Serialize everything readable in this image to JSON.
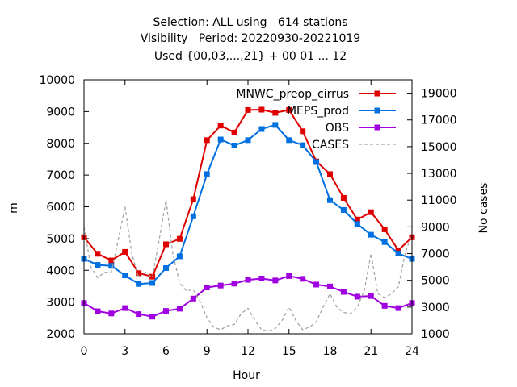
{
  "title_lines": [
    "Selection: ALL using   614 stations",
    "Visibility   Period: 20220930-20221019",
    "Used {00,03,...,21} + 00 01 ... 12"
  ],
  "chart_data": {
    "type": "line",
    "xlabel": "Hour",
    "ylabel": "m",
    "y2label": "No cases",
    "xlim": [
      0,
      24
    ],
    "ylim": [
      2000,
      10000
    ],
    "y2lim": [
      1000,
      20000
    ],
    "xticks": [
      0,
      3,
      6,
      9,
      12,
      15,
      18,
      21,
      24
    ],
    "yticks": [
      2000,
      3000,
      4000,
      5000,
      6000,
      7000,
      8000,
      9000,
      10000
    ],
    "y2ticks": [
      1000,
      3000,
      5000,
      7000,
      9000,
      11000,
      13000,
      15000,
      17000,
      19000
    ],
    "grid": false,
    "legend_position": "top-right",
    "x": [
      0,
      1,
      2,
      3,
      4,
      5,
      6,
      7,
      8,
      9,
      10,
      11,
      12,
      13,
      14,
      15,
      16,
      17,
      18,
      19,
      20,
      21,
      22,
      23,
      24
    ],
    "series": [
      {
        "name": "MNWC_preop_cirrus",
        "color": "#e00000",
        "axis": "y1",
        "marker": "square",
        "values": [
          5040,
          4520,
          4310,
          4580,
          3910,
          3800,
          4820,
          4990,
          6240,
          8100,
          8560,
          8340,
          9050,
          9060,
          8960,
          9050,
          8380,
          7430,
          7030,
          6280,
          5600,
          5830,
          5290,
          4630,
          5040
        ]
      },
      {
        "name": "MEPS_prod",
        "color": "#0070e0",
        "axis": "y1",
        "marker": "square",
        "values": [
          4360,
          4170,
          4140,
          3840,
          3570,
          3600,
          4070,
          4440,
          5700,
          7030,
          8120,
          7930,
          8100,
          8450,
          8580,
          8100,
          7940,
          7410,
          6210,
          5900,
          5460,
          5120,
          4890,
          4530,
          4360
        ]
      },
      {
        "name": "OBS",
        "color": "#a000e0",
        "axis": "y1",
        "marker": "square",
        "values": [
          2970,
          2710,
          2640,
          2810,
          2620,
          2540,
          2720,
          2790,
          3110,
          3460,
          3520,
          3580,
          3700,
          3740,
          3680,
          3820,
          3730,
          3550,
          3490,
          3320,
          3170,
          3190,
          2880,
          2810,
          2970
        ]
      },
      {
        "name": "CASES",
        "color": "#a0a0a0",
        "axis": "y2",
        "dashed": true,
        "x": [
          0,
          0.5,
          1,
          1.5,
          2,
          2.5,
          3,
          3.5,
          4,
          4.5,
          5,
          5.5,
          6,
          6.5,
          7,
          7.5,
          8,
          8.5,
          9,
          9.5,
          10,
          10.5,
          11,
          11.5,
          12,
          12.5,
          13,
          13.5,
          14,
          14.5,
          15,
          15.5,
          16,
          16.5,
          17,
          17.5,
          18,
          18.5,
          19,
          19.5,
          20,
          20.5,
          21,
          21.5,
          22,
          22.5,
          23,
          23.5,
          24
        ],
        "values": [
          9000,
          6000,
          5200,
          5600,
          5600,
          8000,
          10500,
          7000,
          5200,
          5600,
          5200,
          8000,
          11000,
          7000,
          4800,
          4200,
          4300,
          3400,
          2200,
          1500,
          1300,
          1600,
          1700,
          2500,
          2900,
          2000,
          1300,
          1200,
          1400,
          2000,
          3000,
          2000,
          1300,
          1500,
          1900,
          3000,
          4000,
          3000,
          2600,
          2500,
          3000,
          4200,
          7000,
          4000,
          3700,
          4000,
          4500,
          7000,
          8500
        ]
      }
    ]
  }
}
